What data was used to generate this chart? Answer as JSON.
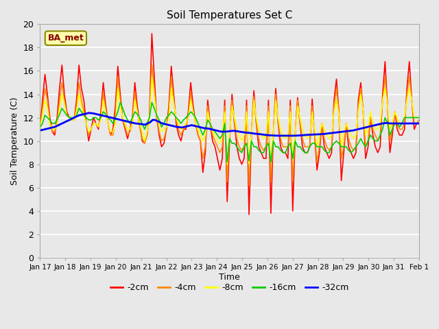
{
  "title": "Soil Temperatures Set C",
  "xlabel": "Time",
  "ylabel": "Soil Temperature (C)",
  "fig_facecolor": "#e8e8e8",
  "plot_bg_color": "#e8e8e8",
  "ylim": [
    0,
    20
  ],
  "yticks": [
    0,
    2,
    4,
    6,
    8,
    10,
    12,
    14,
    16,
    18,
    20
  ],
  "xtick_labels": [
    "Jan 17",
    "Jan 18",
    "Jan 19",
    "Jan 20",
    "Jan 21",
    "Jan 22",
    "Jan 23",
    "Jan 24",
    "Jan 25",
    "Jan 26",
    "Jan 27",
    "Jan 28",
    "Jan 29",
    "Jan 30",
    "Jan 31",
    "Feb 1"
  ],
  "series": {
    "-2cm": {
      "color": "#ff0000",
      "lw": 1.2,
      "values": [
        11.2,
        13.5,
        15.7,
        14.0,
        12.0,
        10.8,
        10.5,
        12.0,
        14.5,
        16.5,
        14.0,
        12.5,
        12.0,
        11.8,
        11.8,
        13.5,
        16.5,
        14.5,
        13.5,
        11.5,
        10.0,
        11.0,
        12.0,
        11.5,
        11.0,
        12.5,
        15.0,
        13.0,
        11.5,
        10.5,
        11.0,
        13.0,
        16.4,
        14.0,
        11.8,
        11.0,
        10.2,
        11.0,
        12.0,
        15.0,
        13.0,
        11.5,
        10.0,
        9.8,
        10.5,
        12.0,
        19.2,
        15.5,
        12.0,
        10.5,
        9.5,
        9.8,
        11.0,
        13.0,
        16.4,
        14.0,
        11.5,
        10.5,
        10.0,
        11.0,
        11.0,
        12.5,
        15.0,
        13.0,
        11.5,
        10.5,
        10.0,
        7.3,
        9.0,
        13.5,
        11.5,
        10.0,
        9.5,
        8.5,
        7.5,
        8.5,
        13.5,
        4.8,
        10.0,
        14.0,
        11.5,
        9.5,
        8.5,
        8.0,
        8.5,
        13.5,
        3.7,
        10.5,
        14.3,
        11.5,
        9.5,
        9.0,
        8.5,
        8.5,
        13.5,
        3.8,
        10.5,
        14.5,
        11.5,
        9.5,
        9.0,
        9.0,
        8.5,
        13.5,
        4.0,
        10.5,
        13.7,
        11.5,
        9.5,
        9.0,
        9.0,
        9.5,
        13.6,
        10.5,
        7.5,
        9.0,
        11.5,
        9.5,
        9.0,
        8.5,
        9.0,
        13.5,
        15.3,
        12.5,
        6.6,
        9.0,
        11.5,
        9.5,
        9.0,
        8.5,
        9.0,
        13.5,
        15.0,
        12.5,
        8.5,
        9.5,
        12.0,
        10.5,
        9.5,
        9.0,
        9.5,
        14.0,
        16.8,
        13.0,
        9.0,
        10.5,
        12.5,
        11.0,
        10.5,
        10.5,
        11.0,
        14.5,
        16.8,
        13.5,
        11.0,
        11.5,
        11.5
      ]
    },
    "-4cm": {
      "color": "#ff8800",
      "lw": 1.2,
      "values": [
        11.0,
        12.8,
        14.5,
        13.5,
        11.5,
        10.8,
        10.8,
        11.5,
        13.5,
        15.0,
        13.5,
        12.2,
        12.0,
        11.8,
        11.8,
        13.0,
        15.0,
        13.5,
        12.5,
        11.5,
        10.5,
        11.0,
        11.5,
        11.5,
        11.2,
        12.0,
        14.2,
        12.5,
        11.5,
        10.5,
        10.5,
        12.0,
        15.5,
        13.5,
        11.8,
        11.2,
        10.5,
        10.8,
        11.5,
        14.2,
        12.5,
        11.2,
        10.2,
        9.8,
        10.5,
        12.0,
        16.5,
        14.5,
        12.0,
        10.8,
        10.0,
        10.2,
        11.0,
        12.5,
        15.5,
        13.5,
        11.8,
        11.0,
        10.5,
        11.0,
        11.2,
        12.0,
        14.2,
        12.5,
        11.5,
        10.5,
        10.0,
        8.5,
        9.5,
        13.0,
        11.5,
        10.5,
        10.0,
        9.5,
        9.0,
        9.5,
        13.0,
        6.5,
        10.5,
        13.5,
        11.5,
        10.2,
        9.5,
        9.2,
        9.5,
        13.0,
        6.2,
        10.5,
        13.8,
        11.5,
        10.2,
        9.5,
        9.2,
        9.5,
        13.0,
        6.5,
        10.5,
        14.0,
        11.5,
        10.2,
        9.5,
        9.5,
        9.5,
        13.0,
        6.5,
        10.5,
        13.5,
        11.5,
        10.2,
        9.5,
        9.5,
        9.5,
        13.0,
        10.5,
        8.2,
        9.5,
        11.5,
        10.2,
        9.5,
        9.2,
        9.5,
        13.0,
        14.5,
        12.5,
        8.5,
        9.5,
        11.5,
        10.2,
        9.5,
        9.2,
        9.5,
        13.0,
        14.5,
        12.5,
        9.5,
        10.0,
        12.0,
        11.0,
        10.5,
        10.0,
        10.5,
        13.5,
        15.5,
        13.0,
        10.0,
        11.0,
        12.5,
        11.5,
        11.0,
        11.0,
        11.5,
        14.0,
        15.5,
        13.5,
        11.5,
        11.5,
        11.8
      ]
    },
    "-8cm": {
      "color": "#ffff00",
      "lw": 1.2,
      "values": [
        11.0,
        12.2,
        13.5,
        12.8,
        11.5,
        11.0,
        11.0,
        11.5,
        12.8,
        14.0,
        13.2,
        12.2,
        12.0,
        11.8,
        11.8,
        12.5,
        14.0,
        13.0,
        12.2,
        11.5,
        10.8,
        11.0,
        11.5,
        11.5,
        11.2,
        11.8,
        13.5,
        12.5,
        11.5,
        10.8,
        10.8,
        11.5,
        14.5,
        13.0,
        12.0,
        11.5,
        11.0,
        11.0,
        11.5,
        13.5,
        12.5,
        11.5,
        10.8,
        10.0,
        10.8,
        11.5,
        15.5,
        13.8,
        12.2,
        11.5,
        10.8,
        11.0,
        11.2,
        12.0,
        14.5,
        13.2,
        12.0,
        11.5,
        11.0,
        11.2,
        11.5,
        12.0,
        13.5,
        12.5,
        11.5,
        11.0,
        10.5,
        10.0,
        10.5,
        12.5,
        11.5,
        10.8,
        10.5,
        10.0,
        9.8,
        10.5,
        12.5,
        8.0,
        10.5,
        13.0,
        12.0,
        11.0,
        10.5,
        10.0,
        10.5,
        12.5,
        8.0,
        10.5,
        13.5,
        12.0,
        11.0,
        10.5,
        10.2,
        10.5,
        12.5,
        8.2,
        10.5,
        13.5,
        12.0,
        11.0,
        10.5,
        10.2,
        10.5,
        12.5,
        8.5,
        10.5,
        13.0,
        12.0,
        11.0,
        10.5,
        10.2,
        10.5,
        12.5,
        11.0,
        9.5,
        10.5,
        11.5,
        11.0,
        10.5,
        10.2,
        10.5,
        12.5,
        13.5,
        12.2,
        9.5,
        10.5,
        11.5,
        11.0,
        10.5,
        10.2,
        10.5,
        12.5,
        14.0,
        12.5,
        10.5,
        11.0,
        12.5,
        11.5,
        11.0,
        11.0,
        11.5,
        13.5,
        14.5,
        13.0,
        11.0,
        11.5,
        12.5,
        12.0,
        11.5,
        11.5,
        12.0,
        13.5,
        14.5,
        13.5,
        12.0,
        12.0,
        12.0
      ]
    },
    "-16cm": {
      "color": "#00cc00",
      "lw": 1.2,
      "values": [
        11.2,
        11.5,
        12.2,
        12.0,
        11.8,
        11.5,
        11.5,
        11.8,
        12.3,
        12.8,
        12.5,
        12.2,
        12.0,
        12.0,
        12.0,
        12.2,
        12.8,
        12.5,
        12.2,
        12.0,
        11.8,
        11.8,
        12.0,
        12.0,
        11.8,
        12.0,
        12.5,
        12.3,
        12.0,
        11.8,
        11.5,
        12.0,
        12.5,
        13.3,
        12.8,
        12.2,
        11.8,
        11.5,
        12.0,
        12.5,
        12.3,
        12.0,
        11.5,
        11.0,
        11.5,
        12.0,
        13.3,
        12.8,
        12.2,
        11.8,
        11.2,
        11.5,
        12.0,
        12.2,
        12.5,
        12.3,
        12.0,
        11.8,
        11.5,
        11.8,
        12.0,
        12.2,
        12.5,
        12.3,
        12.0,
        11.5,
        11.0,
        10.5,
        11.0,
        11.8,
        11.5,
        11.0,
        10.8,
        10.5,
        10.2,
        10.5,
        11.5,
        8.2,
        10.2,
        9.8,
        9.8,
        9.5,
        9.2,
        9.0,
        9.5,
        9.8,
        8.3,
        10.0,
        9.5,
        9.5,
        9.2,
        9.0,
        9.0,
        9.5,
        9.8,
        8.2,
        10.0,
        9.5,
        9.5,
        9.2,
        9.0,
        9.0,
        9.5,
        9.8,
        8.5,
        10.0,
        9.5,
        9.5,
        9.2,
        9.0,
        9.0,
        9.5,
        9.8,
        9.8,
        9.5,
        9.5,
        9.5,
        9.2,
        9.0,
        9.0,
        9.5,
        9.8,
        10.0,
        9.8,
        9.5,
        9.5,
        9.5,
        9.2,
        9.0,
        9.2,
        9.5,
        9.8,
        10.2,
        9.8,
        9.5,
        10.0,
        10.5,
        10.2,
        10.0,
        10.0,
        10.5,
        11.0,
        12.0,
        11.5,
        10.5,
        11.0,
        11.5,
        11.5,
        11.2,
        11.5,
        12.0,
        12.0,
        12.0,
        12.0,
        12.0,
        12.0,
        12.0
      ]
    },
    "-32cm": {
      "color": "#0000ff",
      "lw": 2.0,
      "values": [
        10.9,
        10.95,
        11.0,
        11.05,
        11.1,
        11.15,
        11.2,
        11.3,
        11.4,
        11.5,
        11.6,
        11.7,
        11.8,
        11.9,
        12.0,
        12.1,
        12.2,
        12.25,
        12.3,
        12.35,
        12.4,
        12.38,
        12.35,
        12.3,
        12.25,
        12.2,
        12.15,
        12.1,
        12.05,
        12.0,
        11.95,
        11.9,
        11.85,
        11.8,
        11.75,
        11.7,
        11.65,
        11.6,
        11.55,
        11.5,
        11.48,
        11.45,
        11.42,
        11.4,
        11.5,
        11.6,
        11.8,
        11.8,
        11.7,
        11.6,
        11.5,
        11.45,
        11.4,
        11.35,
        11.3,
        11.25,
        11.2,
        11.18,
        11.15,
        11.2,
        11.25,
        11.3,
        11.35,
        11.3,
        11.25,
        11.2,
        11.15,
        11.1,
        11.08,
        11.05,
        11.0,
        10.95,
        10.9,
        10.85,
        10.8,
        10.8,
        10.8,
        10.82,
        10.85,
        10.87,
        10.85,
        10.82,
        10.78,
        10.75,
        10.72,
        10.7,
        10.68,
        10.65,
        10.62,
        10.6,
        10.58,
        10.55,
        10.52,
        10.5,
        10.48,
        10.47,
        10.46,
        10.45,
        10.45,
        10.45,
        10.45,
        10.45,
        10.45,
        10.45,
        10.45,
        10.46,
        10.47,
        10.48,
        10.5,
        10.52,
        10.53,
        10.54,
        10.55,
        10.56,
        10.57,
        10.58,
        10.6,
        10.62,
        10.65,
        10.67,
        10.7,
        10.72,
        10.75,
        10.77,
        10.8,
        10.82,
        10.85,
        10.87,
        10.9,
        10.95,
        11.0,
        11.05,
        11.1,
        11.15,
        11.2,
        11.25,
        11.3,
        11.35,
        11.4,
        11.45,
        11.5,
        11.52,
        11.55,
        11.5,
        11.5,
        11.5,
        11.5,
        11.5,
        11.5,
        11.5,
        11.5,
        11.5,
        11.5,
        11.5,
        11.5,
        11.5
      ]
    }
  },
  "annotation_text": "BA_met",
  "annotation_fontsize": 9,
  "annotation_color": "#880000",
  "annotation_bbox_facecolor": "#ffffaa",
  "annotation_bbox_edgecolor": "#888800"
}
